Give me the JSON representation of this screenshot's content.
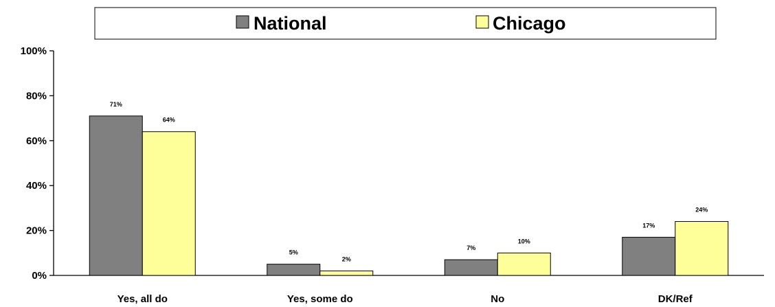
{
  "chart_data": {
    "type": "bar",
    "categories": [
      "Yes, all do",
      "Yes, some do",
      "No",
      "DK/Ref"
    ],
    "series": [
      {
        "name": "National",
        "values": [
          71,
          5,
          7,
          17
        ],
        "labels": [
          "71%",
          "5%",
          "7%",
          "17%"
        ],
        "color": "#808080"
      },
      {
        "name": "Chicago",
        "values": [
          64,
          2,
          10,
          24
        ],
        "labels": [
          "64%",
          "2%",
          "10%",
          "24%"
        ],
        "color": "#ffff99"
      }
    ],
    "yticks": [
      "0%",
      "20%",
      "40%",
      "60%",
      "80%",
      "100%"
    ],
    "ylim": [
      0,
      100
    ],
    "title": "",
    "xlabel": "",
    "ylabel": "",
    "grid": false,
    "legend_position": "top"
  }
}
